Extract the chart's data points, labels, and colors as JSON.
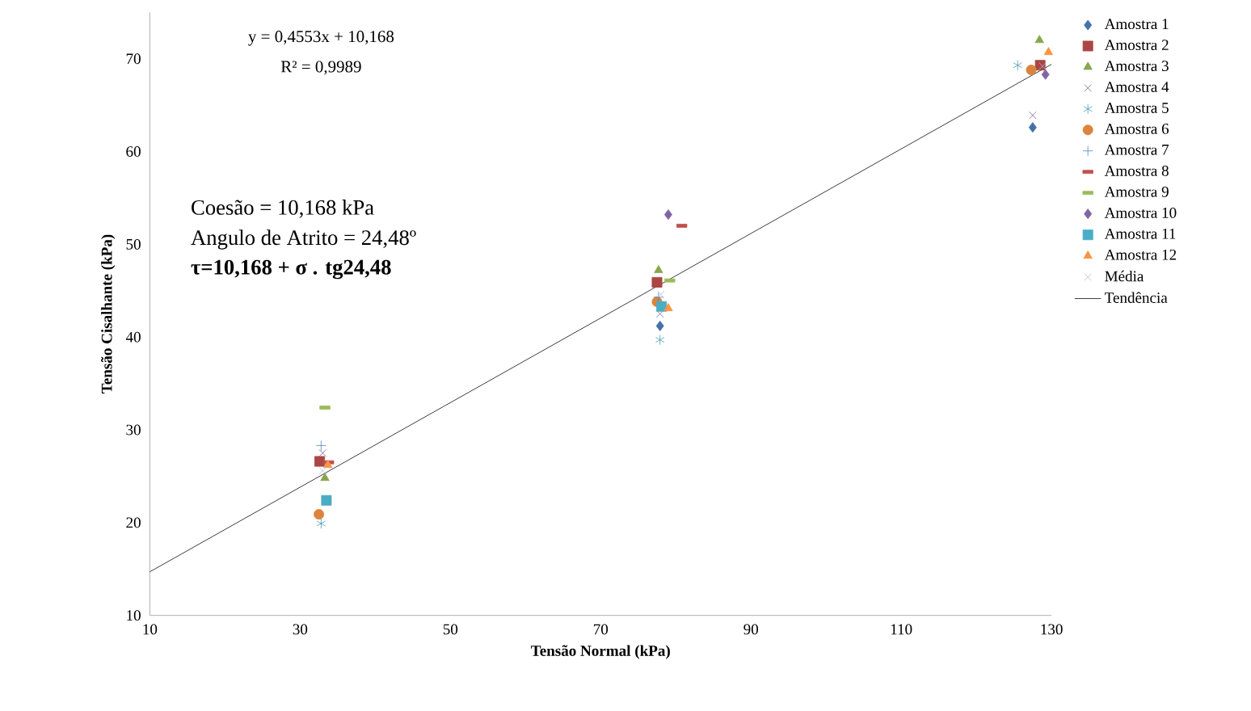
{
  "chart_data": {
    "type": "scatter",
    "xlabel": "Tensão Normal (kPa)",
    "ylabel": "Tensão Cisalhante (kPa)",
    "xlim": [
      10,
      130
    ],
    "xticks": [
      10,
      30,
      50,
      70,
      90,
      110,
      130
    ],
    "ylim": [
      10,
      75
    ],
    "yticks": [
      10,
      20,
      30,
      40,
      50,
      60,
      70
    ],
    "legend": "right",
    "annotations": [
      "y = 0,4553x + 10,168",
      "R² = 0,9989",
      "Coesão = 10,168 kPa",
      "Angulo de Atrito = 24,48º",
      "**τ=10,168 + σ . tg24,48**"
    ],
    "series": [
      {
        "name": "Amostra 1",
        "color": "#4572a7",
        "marker": "diamond",
        "x": [
          77.9,
          127.5
        ],
        "values": [
          41.2,
          62.6
        ]
      },
      {
        "name": "Amostra 2",
        "color": "#aa4643",
        "marker": "square",
        "x": [
          32.6,
          77.5,
          128.5
        ],
        "values": [
          26.6,
          45.9,
          69.3
        ]
      },
      {
        "name": "Amostra 3",
        "color": "#89a54e",
        "marker": "triangle",
        "x": [
          33.3,
          77.7,
          128.4
        ],
        "values": [
          24.8,
          47.2,
          72
        ]
      },
      {
        "name": "Amostra 4",
        "color": "#71588f",
        "marker": "cross",
        "x": [
          33,
          77.9,
          127.5
        ],
        "values": [
          27.5,
          42.5,
          63.9
        ]
      },
      {
        "name": "Amostra 5",
        "color": "#4198af",
        "marker": "cross",
        "x": [
          32.8,
          77.9,
          125.5
        ],
        "values": [
          19.9,
          39.7,
          69.3
        ]
      },
      {
        "name": "Amostra 6",
        "color": "#db843d",
        "marker": "circle",
        "x": [
          32.5,
          77.5,
          127.3
        ],
        "values": [
          20.9,
          43.8,
          68.8
        ]
      },
      {
        "name": "Amostra 7",
        "color": "#4f81bd",
        "marker": "cross",
        "x": [
          32.8,
          77.7
        ],
        "values": [
          28.3,
          44.3
        ]
      },
      {
        "name": "Amostra 8",
        "color": "#c0504d",
        "x": [
          33.8,
          80.8
        ],
        "values": [
          26.5,
          52
        ]
      },
      {
        "name": "Amostra 9",
        "color": "#9bbb59",
        "x": [
          33.3,
          79.2
        ],
        "values": [
          32.4,
          46.1
        ]
      },
      {
        "name": "Amostra 10",
        "color": "#8064a2",
        "marker": "diamond",
        "x": [
          79,
          129.2
        ],
        "values": [
          53.2,
          68.3
        ]
      },
      {
        "name": "Amostra 11",
        "color": "#4bacc6",
        "marker": "square",
        "x": [
          33.5,
          78.1
        ],
        "values": [
          22.4,
          43.3
        ]
      },
      {
        "name": "Amostra 12",
        "color": "#f79646",
        "marker": "triangle",
        "x": [
          33.7,
          79,
          129.6
        ],
        "values": [
          26.2,
          43.1,
          70.7
        ]
      },
      {
        "name": "Média",
        "color": "#a5b9dc",
        "marker": "cross",
        "x": [
          33,
          78,
          128.8
        ],
        "values": [
          25.6,
          44.6,
          69.2
        ]
      },
      {
        "name": "Tendência",
        "type": "line",
        "color": "#000000",
        "marker": "none",
        "line_style": "solid",
        "x": [
          10,
          130
        ],
        "values": [
          14.7,
          69.4
        ]
      }
    ]
  }
}
